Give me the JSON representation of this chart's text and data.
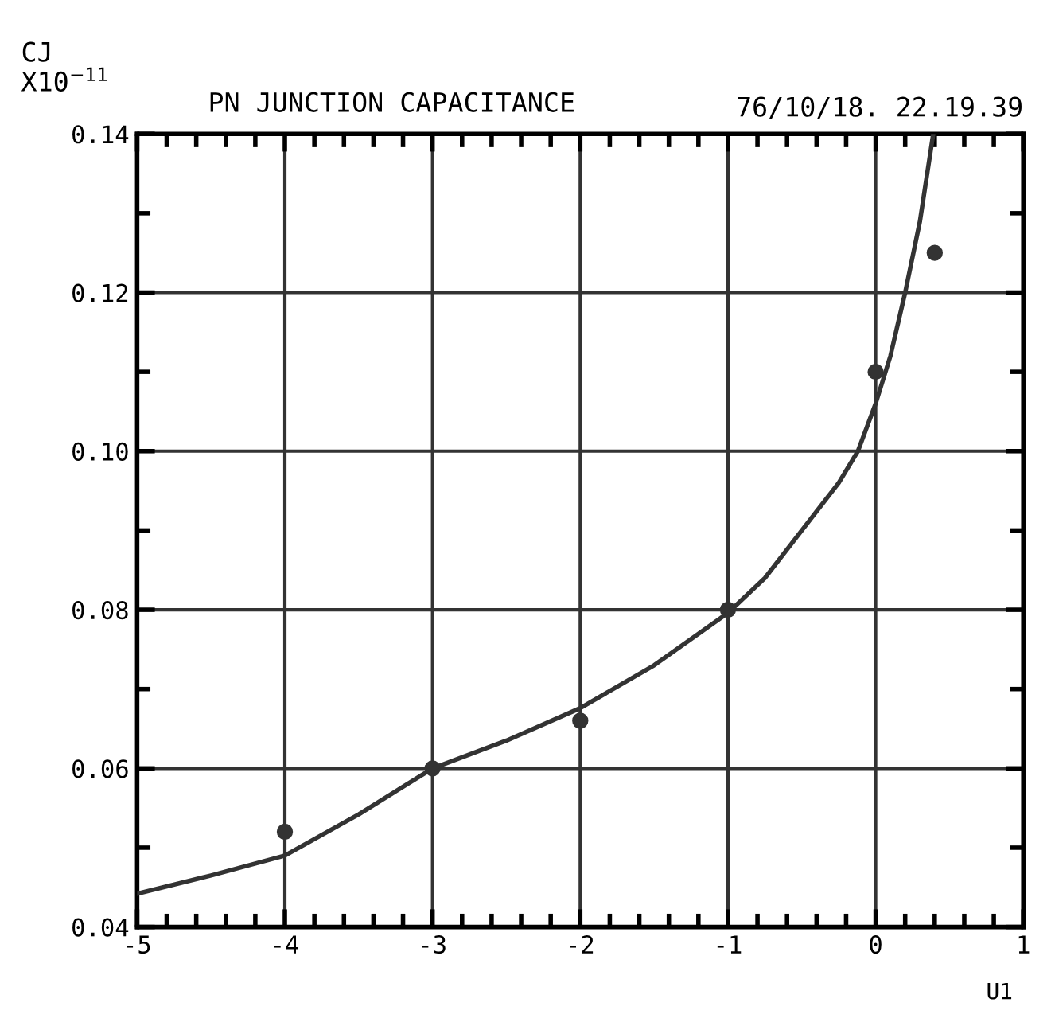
{
  "chart_data": {
    "type": "line",
    "title": "PN JUNCTION CAPACITANCE",
    "ylabel": "CJ\nX10$^{−11}$",
    "xlabel": "U1",
    "annotations": [
      "76/10/18. 22.19.39"
    ],
    "series": [
      {
        "type": "scatter",
        "color": "#333333",
        "marker": "circle",
        "x": [
          -4,
          -3,
          -2,
          -1,
          0,
          0.4
        ],
        "values": [
          0.052,
          0.06,
          0.066,
          0.08,
          0.11,
          0.125
        ]
      },
      {
        "color": "#333333",
        "marker": "none",
        "x": [
          -5,
          -4.5,
          -4,
          -3.5,
          -3,
          -2.5,
          -2,
          -1.5,
          -1,
          -0.75,
          -0.5,
          -0.25,
          -0.12,
          0,
          0.1,
          0.2,
          0.3,
          0.39
        ],
        "values": [
          0.0442,
          0.0465,
          0.049,
          0.0542,
          0.06,
          0.0635,
          0.0676,
          0.073,
          0.0796,
          0.084,
          0.09,
          0.096,
          0.1,
          0.106,
          0.112,
          0.12,
          0.129,
          0.14
        ]
      }
    ],
    "xlim": [
      -5,
      1
    ],
    "xticks": [
      -5,
      -4,
      -3,
      -2,
      -1,
      0,
      1
    ],
    "ylim": [
      0.04,
      0.14
    ],
    "yticks": [
      {
        "value": 0.04,
        "label": "0.04"
      },
      {
        "value": 0.06,
        "label": "0.06"
      },
      {
        "value": 0.08,
        "label": "0.08"
      },
      {
        "value": 0.1,
        "label": "0.10"
      },
      {
        "value": 0.12,
        "label": "0.12"
      },
      {
        "value": 0.14,
        "label": "0.14"
      }
    ],
    "grid": true,
    "legend": false
  }
}
